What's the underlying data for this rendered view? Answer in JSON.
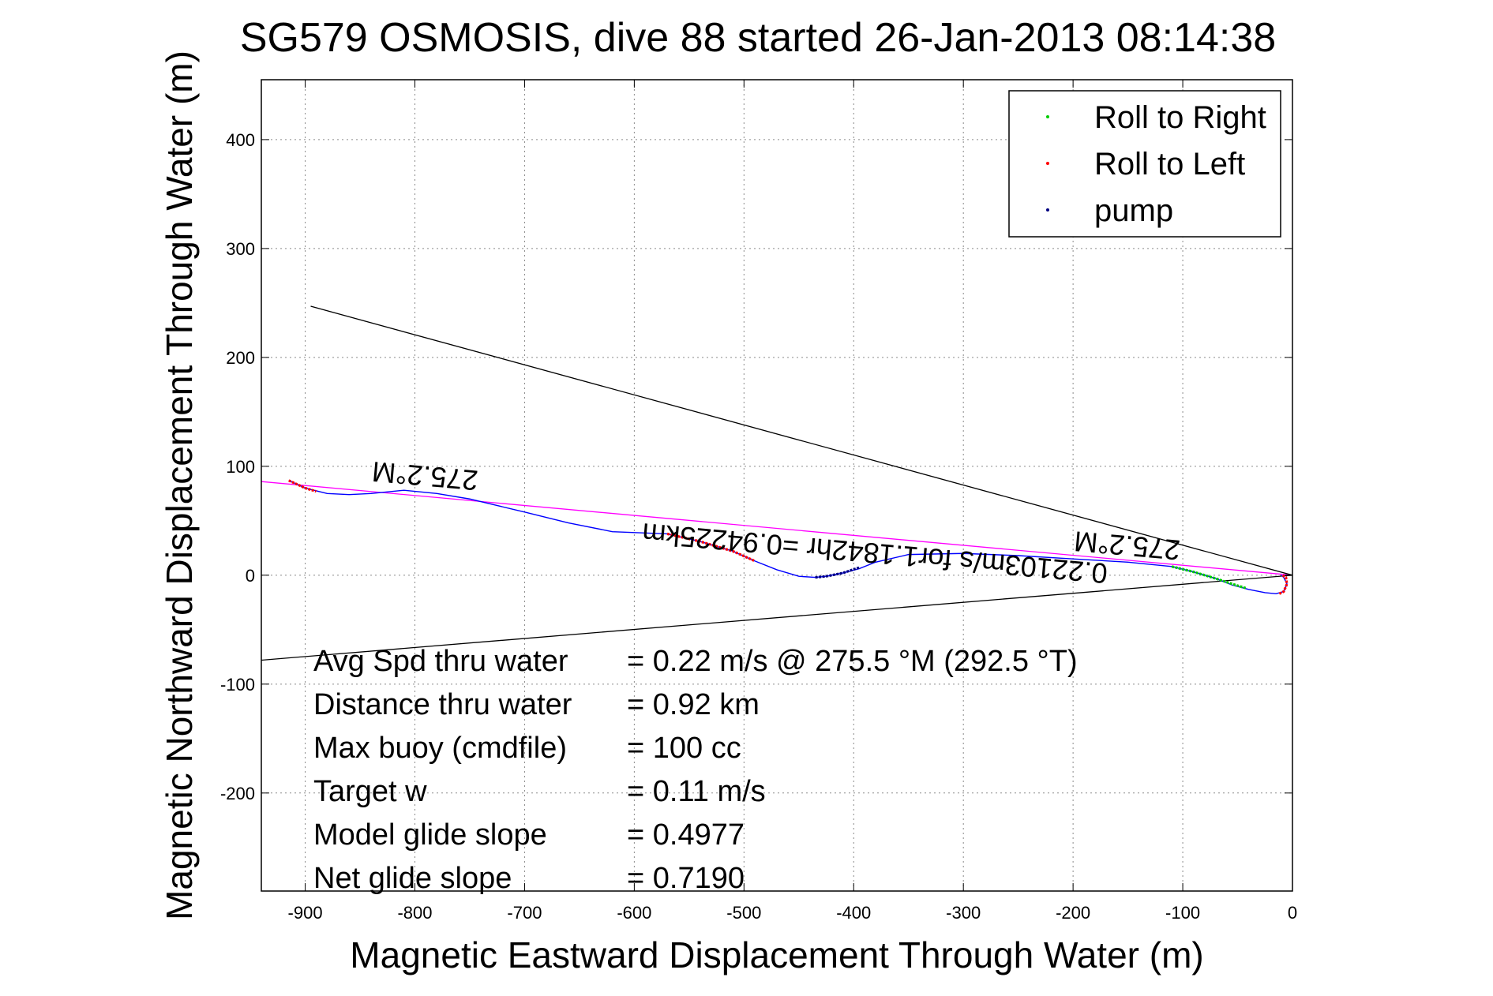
{
  "chart_data": {
    "type": "line",
    "title": "SG579 OSMOSIS, dive 88 started 26-Jan-2013 08:14:38",
    "xlabel": "Magnetic Eastward Displacement Through Water (m)",
    "ylabel": "Magnetic Northward Displacement Through Water (m)",
    "xlim": [
      -940,
      0
    ],
    "ylim": [
      -290,
      455
    ],
    "xticks": [
      -900,
      -800,
      -700,
      -600,
      -500,
      -400,
      -300,
      -200,
      -100,
      0
    ],
    "yticks": [
      -200,
      -100,
      0,
      100,
      200,
      300,
      400
    ],
    "grid": true,
    "legend_position": "top-right",
    "legend": [
      {
        "label": "Roll to Right",
        "color": "#00cc00"
      },
      {
        "label": "Roll to Left",
        "color": "#ff0000"
      },
      {
        "label": "pump",
        "color": "#000080"
      }
    ],
    "track": {
      "name": "track",
      "color": "#0000ff",
      "x": [
        -915,
        -900,
        -880,
        -860,
        -840,
        -810,
        -780,
        -750,
        -700,
        -660,
        -620,
        -570,
        -540,
        -510,
        -490,
        -470,
        -450,
        -435,
        -425,
        -410,
        -395,
        -380,
        -350,
        -300,
        -250,
        -200,
        -150,
        -110,
        -90,
        -70,
        -55,
        -40,
        -25,
        -15,
        -8,
        -5,
        -8,
        -10
      ],
      "y": [
        87,
        80,
        75,
        74,
        75,
        78,
        75,
        70,
        58,
        48,
        40,
        38,
        31,
        22,
        13,
        5,
        -1,
        -2,
        -1,
        2,
        6,
        12,
        19,
        20,
        18,
        15,
        12,
        8,
        3,
        -3,
        -9,
        -13,
        -16,
        -17,
        -15,
        -8,
        -2,
        0
      ]
    },
    "series_marks": [
      {
        "name": "Roll to Right",
        "color": "#00cc00",
        "x": [
          -110,
          -90,
          -70,
          -55,
          -42
        ],
        "y": [
          8,
          3,
          -3,
          -8,
          -12
        ]
      },
      {
        "name": "Roll to Left",
        "color": "#ff0000",
        "x": [
          -570,
          -540,
          -510,
          -490
        ],
        "y": [
          38,
          31,
          22,
          13
        ]
      },
      {
        "name": "Roll to Left",
        "color": "#ff0000",
        "x": [
          -915,
          -900,
          -890
        ],
        "y": [
          87,
          80,
          77
        ]
      },
      {
        "name": "Roll to Left",
        "color": "#ff0000",
        "x": [
          -12,
          -8,
          -5,
          -6,
          -9
        ],
        "y": [
          -17,
          -15,
          -8,
          -2,
          0
        ]
      },
      {
        "name": "pump",
        "color": "#000080",
        "x": [
          -435,
          -425,
          -410,
          -395
        ],
        "y": [
          -2,
          -1,
          2,
          7
        ]
      }
    ],
    "lines": [
      {
        "color": "#ff00ff",
        "x": [
          -940,
          0
        ],
        "y": [
          86,
          0
        ]
      },
      {
        "color": "#000000",
        "x": [
          -895,
          0
        ],
        "y": [
          247,
          0
        ]
      },
      {
        "color": "#000000",
        "x": [
          -940,
          0
        ],
        "y": [
          -78,
          0
        ]
      }
    ],
    "annotations": [
      {
        "text": "275.2°M",
        "x": -790,
        "y": 100,
        "rotation": 185
      },
      {
        "text": "0.22103m/s for1.1842hr =0.94225km",
        "x": -380,
        "y": 29,
        "rotation": 185
      },
      {
        "text": "275.2°M",
        "x": -150,
        "y": 36,
        "rotation": 185
      }
    ],
    "stats": [
      {
        "label": "Avg Spd thru water",
        "value": "=  0.22 m/s @ 275.5 °M (292.5 °T)"
      },
      {
        "label": "Distance thru water",
        "value": "=  0.92 km"
      },
      {
        "label": "Max buoy (cmdfile)",
        "value": "= 100 cc"
      },
      {
        "label": "Target w",
        "value": "= 0.11 m/s"
      },
      {
        "label": "Model glide slope",
        "value": "= 0.4977"
      },
      {
        "label": "Net glide slope",
        "value": "= 0.7190"
      }
    ]
  }
}
